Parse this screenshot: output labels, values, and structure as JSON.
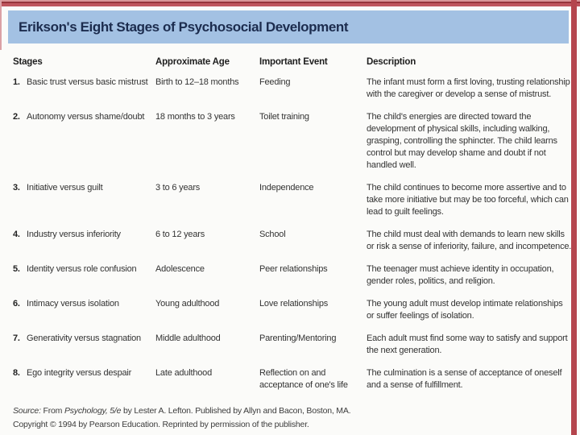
{
  "colors": {
    "frame_red": "#b4454d",
    "banner_blue": "#a3c1e3",
    "title_navy": "#1c2c4e"
  },
  "header": {
    "title": "Erikson's Eight Stages of Psychosocial Development"
  },
  "table": {
    "columns": [
      "Stages",
      "Approximate Age",
      "Important Event",
      "Description"
    ],
    "rows": [
      {
        "num": "1.",
        "stage": "Basic trust versus basic mistrust",
        "age": "Birth to 12–18 months",
        "event": "Feeding",
        "description": "The infant must form a first loving, trusting relationship with the caregiver or develop a sense of mistrust."
      },
      {
        "num": "2.",
        "stage": "Autonomy versus shame/doubt",
        "age": "18 months to 3 years",
        "event": "Toilet training",
        "description": "The child's energies are directed toward the development of physical skills, including walking, grasping, controlling the sphincter. The child learns control but may develop shame and doubt if not handled well."
      },
      {
        "num": "3.",
        "stage": "Initiative versus guilt",
        "age": "3 to 6 years",
        "event": "Independence",
        "description": "The child continues to become more assertive and to take more initiative but may be too forceful, which can lead to guilt feelings."
      },
      {
        "num": "4.",
        "stage": "Industry versus inferiority",
        "age": "6 to 12 years",
        "event": "School",
        "description": "The child must deal with demands to learn new skills or risk a sense of inferiority, failure, and incompetence."
      },
      {
        "num": "5.",
        "stage": "Identity versus role confusion",
        "age": "Adolescence",
        "event": "Peer relationships",
        "description": "The teenager must achieve identity in occupation, gender roles, politics, and religion."
      },
      {
        "num": "6.",
        "stage": "Intimacy versus isolation",
        "age": "Young adulthood",
        "event": "Love relationships",
        "description": "The young adult must develop intimate relationships or suffer feelings of isolation."
      },
      {
        "num": "7.",
        "stage": "Generativity versus stagnation",
        "age": "Middle adulthood",
        "event": "Parenting/Mentoring",
        "description": "Each adult must find some way to satisfy and support the next generation."
      },
      {
        "num": "8.",
        "stage": "Ego integrity versus despair",
        "age": "Late adulthood",
        "event": "Reflection on and acceptance of one's life",
        "description": "The culmination is a sense of acceptance of oneself and a sense of fulfillment."
      }
    ]
  },
  "footer": {
    "source_label": "Source:",
    "source_pre": " From ",
    "source_title": "Psychology, 5/e",
    "source_rest": " by Lester A. Lefton. Published by Allyn and Bacon, Boston, MA.",
    "copyright": "Copyright © 1994 by Pearson Education. Reprinted by permission of the publisher."
  }
}
